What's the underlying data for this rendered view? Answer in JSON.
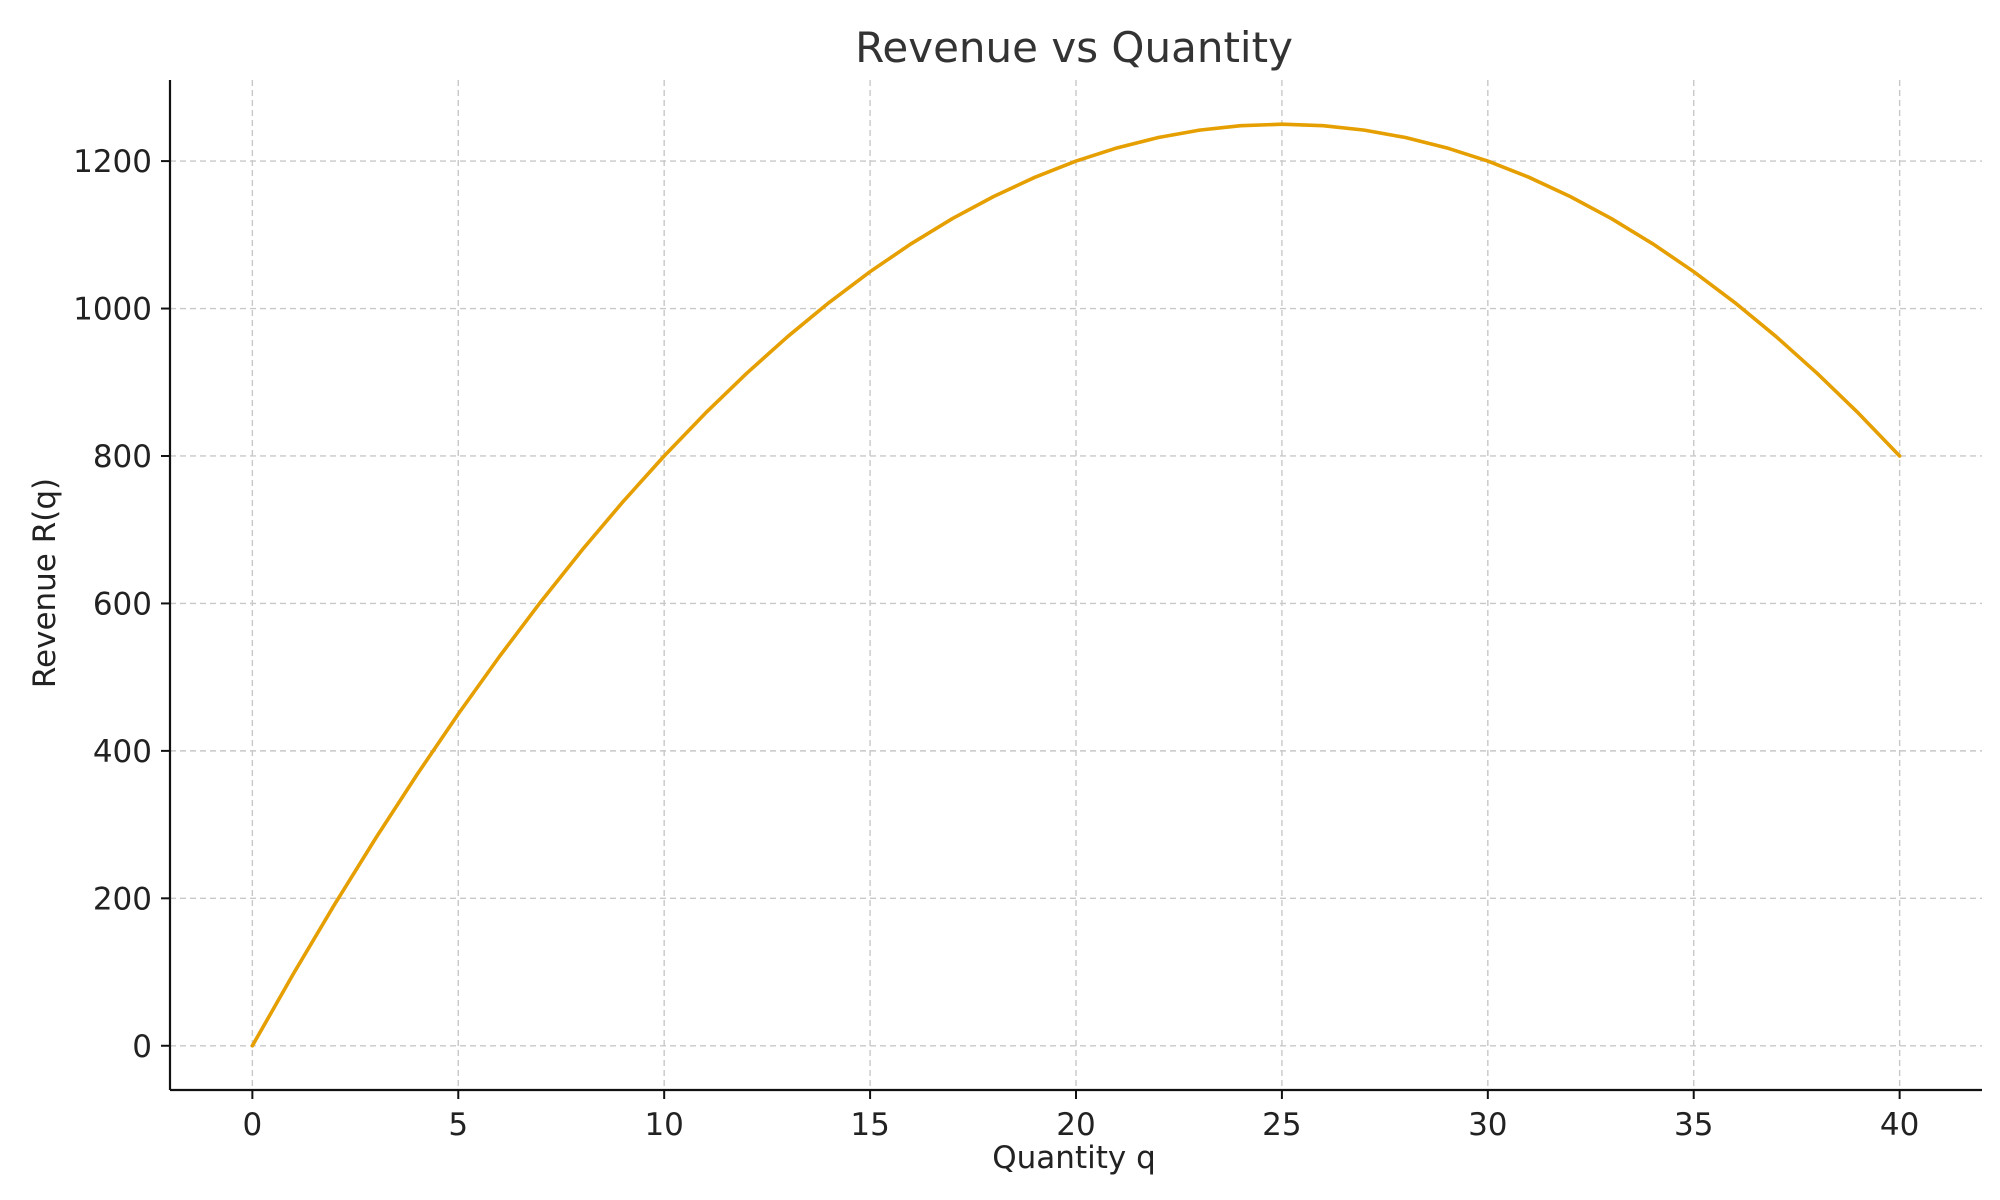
{
  "chart_data": {
    "type": "line",
    "title": "Revenue vs Quantity",
    "xlabel": "Quantity q",
    "ylabel": "Revenue R(q)",
    "xlim": [
      -2,
      42
    ],
    "ylim": [
      -60,
      1310
    ],
    "xticks": [
      0,
      5,
      10,
      15,
      20,
      25,
      30,
      35,
      40
    ],
    "yticks": [
      0,
      200,
      400,
      600,
      800,
      1000,
      1200
    ],
    "grid": true,
    "legend": "none",
    "series": [
      {
        "color": "#E69F00",
        "x": [
          0,
          1,
          2,
          3,
          4,
          5,
          6,
          7,
          8,
          9,
          10,
          11,
          12,
          13,
          14,
          15,
          16,
          17,
          18,
          19,
          20,
          21,
          22,
          23,
          24,
          25,
          26,
          27,
          28,
          29,
          30,
          31,
          32,
          33,
          34,
          35,
          36,
          37,
          38,
          39,
          40
        ],
        "y": [
          0,
          98,
          192,
          282,
          368,
          450,
          528,
          602,
          672,
          738,
          800,
          858,
          912,
          962,
          1008,
          1050,
          1088,
          1122,
          1152,
          1178,
          1200,
          1218,
          1232,
          1242,
          1248,
          1250,
          1248,
          1242,
          1232,
          1218,
          1200,
          1178,
          1152,
          1122,
          1088,
          1050,
          1008,
          962,
          912,
          858,
          800
        ]
      }
    ]
  }
}
